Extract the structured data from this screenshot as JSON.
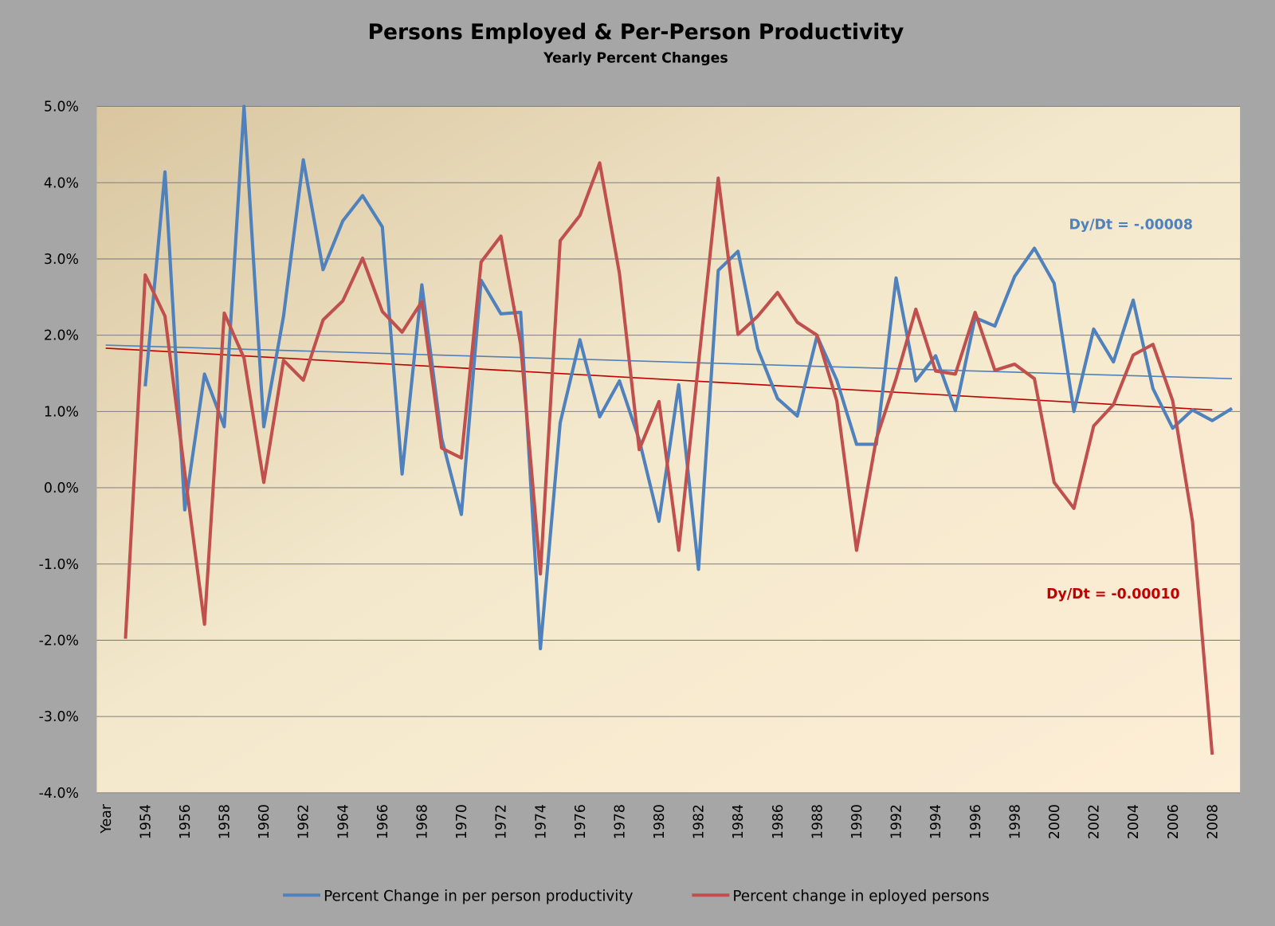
{
  "chart_data": {
    "type": "line",
    "title": "Persons Employed & Per-Person Productivity",
    "subtitle": "Yearly Percent Changes",
    "xlabel": "",
    "ylabel": "",
    "ylim": [
      -4.0,
      5.0
    ],
    "y_ticks": [
      "5.0%",
      "4.0%",
      "3.0%",
      "2.0%",
      "1.0%",
      "0.0%",
      "-1.0%",
      "-2.0%",
      "-3.0%",
      "-4.0%"
    ],
    "grid": true,
    "legend_position": "bottom",
    "categories": [
      "Year",
      1953,
      1954,
      1955,
      1956,
      1957,
      1958,
      1959,
      1960,
      1961,
      1962,
      1963,
      1964,
      1965,
      1966,
      1967,
      1968,
      1969,
      1970,
      1971,
      1972,
      1973,
      1974,
      1975,
      1976,
      1977,
      1978,
      1979,
      1980,
      1981,
      1982,
      1983,
      1984,
      1985,
      1986,
      1987,
      1988,
      1989,
      1990,
      1991,
      1992,
      1993,
      1994,
      1995,
      1996,
      1997,
      1998,
      1999,
      2000,
      2001,
      2002,
      2003,
      2004,
      2005,
      2006,
      2007,
      2008,
      2009
    ],
    "x_tick_labels": [
      "Year",
      "1954",
      "1956",
      "1958",
      "1960",
      "1962",
      "1964",
      "1966",
      "1968",
      "1970",
      "1972",
      "1974",
      "1976",
      "1978",
      "1980",
      "1982",
      "1984",
      "1986",
      "1988",
      "1990",
      "1992",
      "1994",
      "1996",
      "1998",
      "2000",
      "2002",
      "2004",
      "2006",
      "2008"
    ],
    "series": [
      {
        "name": "Percent Change in per person productivity",
        "color": "#4f81bd",
        "values": [
          null,
          null,
          1.33,
          4.14,
          -0.29,
          1.49,
          0.8,
          5.0,
          0.8,
          2.25,
          4.3,
          2.86,
          3.5,
          3.83,
          3.42,
          0.18,
          2.66,
          0.65,
          -0.35,
          2.72,
          2.28,
          2.3,
          -2.11,
          0.85,
          1.94,
          0.93,
          1.4,
          0.63,
          -0.44,
          1.35,
          -1.07,
          2.85,
          3.1,
          1.82,
          1.17,
          0.94,
          1.99,
          1.41,
          0.57,
          0.57,
          2.75,
          1.4,
          1.73,
          1.01,
          2.23,
          2.12,
          2.77,
          3.14,
          2.68,
          1.0,
          2.08,
          1.65,
          2.46,
          1.3,
          0.78,
          1.02,
          0.88,
          1.04
        ]
      },
      {
        "name": "Percent change in eployed persons",
        "color": "#c0504d",
        "values": [
          null,
          -1.98,
          2.79,
          2.25,
          0.2,
          -1.79,
          2.29,
          1.7,
          0.07,
          1.67,
          1.41,
          2.2,
          2.45,
          3.01,
          2.31,
          2.04,
          2.44,
          0.52,
          0.39,
          2.96,
          3.3,
          1.88,
          -1.13,
          3.24,
          3.57,
          4.26,
          2.81,
          0.5,
          1.13,
          -0.82,
          1.63,
          4.06,
          2.01,
          2.25,
          2.56,
          2.17,
          2.0,
          1.14,
          -0.82,
          0.64,
          1.43,
          2.34,
          1.53,
          1.49,
          2.3,
          1.54,
          1.62,
          1.43,
          0.07,
          -0.27,
          0.81,
          1.09,
          1.74,
          1.88,
          1.14,
          -0.44,
          -3.5,
          null
        ]
      }
    ],
    "trendlines": [
      {
        "series": 0,
        "color": "#4f81bd",
        "start_category": "Year",
        "end_category": 2009,
        "start_value": 1.87,
        "end_value": 1.43,
        "label": "Dy/Dt = -.00008"
      },
      {
        "series": 1,
        "color": "#c00000",
        "start_category": "Year",
        "end_category": 2008,
        "start_value": 1.83,
        "end_value": 1.02,
        "label": "Dy/Dt = -0.00010"
      }
    ]
  }
}
